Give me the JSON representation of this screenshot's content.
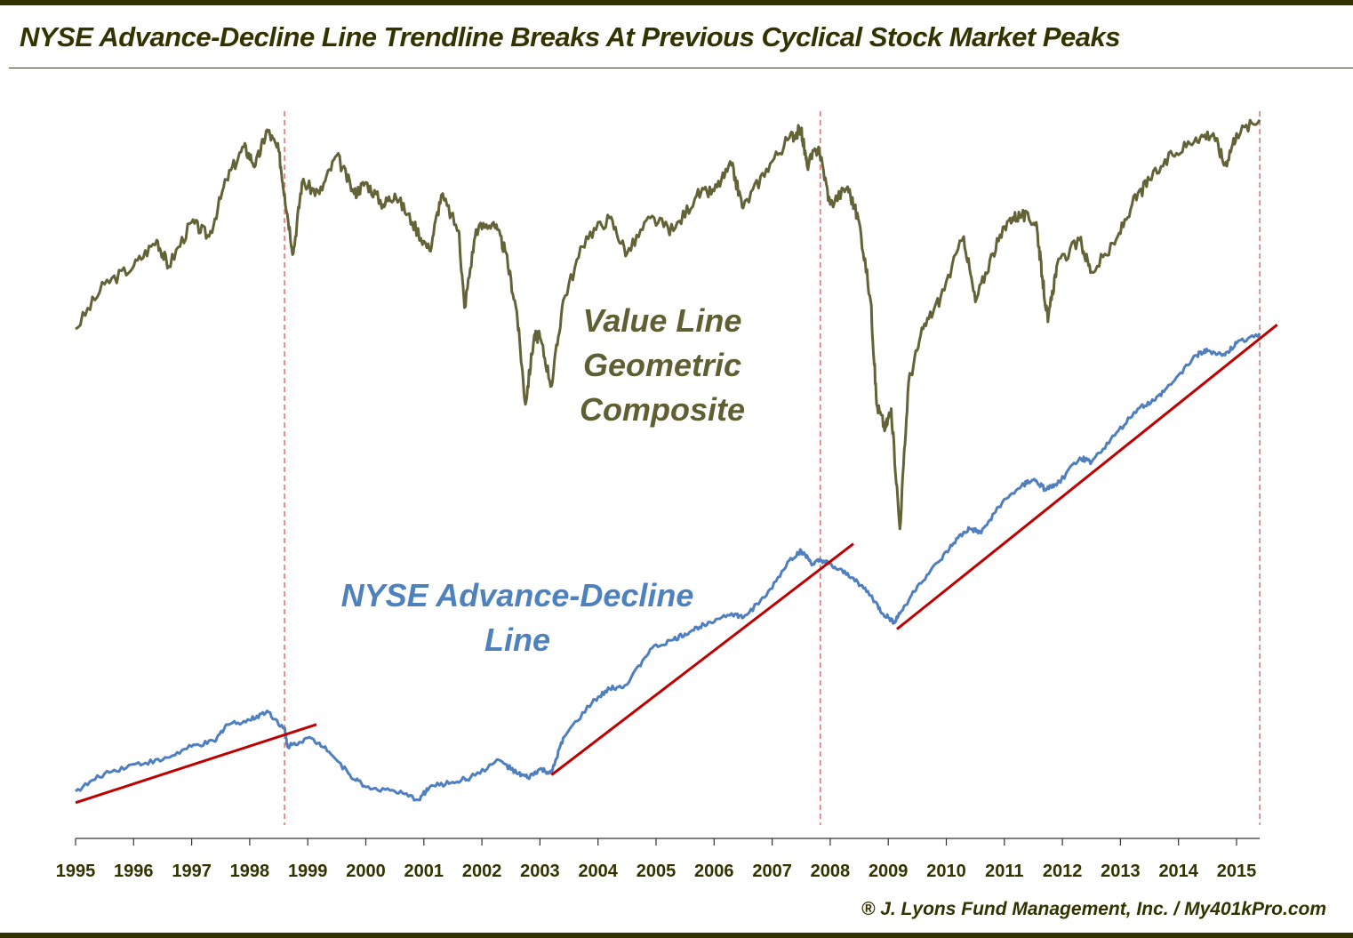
{
  "title": "NYSE Advance-Decline Line Trendline Breaks At Previous Cyclical Stock Market Peaks",
  "credit": "® J. Lyons Fund Management, Inc. / My401kPro.com",
  "chart_data": {
    "type": "line",
    "title": "NYSE Advance-Decline Line Trendline Breaks At Previous Cyclical Stock Market Peaks",
    "xlabel": "",
    "ylabel": "",
    "x_tick_labels": [
      "1995",
      "1996",
      "1997",
      "1998",
      "1999",
      "2000",
      "2001",
      "2002",
      "2003",
      "2004",
      "2005",
      "2006",
      "2007",
      "2008",
      "2009",
      "2010",
      "2011",
      "2012",
      "2013",
      "2014",
      "2015"
    ],
    "xlim": [
      1995,
      2015.4
    ],
    "ylim": [
      0,
      100
    ],
    "y_axis_shown": false,
    "grid": false,
    "legend": "none",
    "series": [
      {
        "name": "Value Line Geometric Composite",
        "color": "#636337",
        "label_lines": [
          "Value Line",
          "Geometric",
          "Composite"
        ],
        "x": [
          1995.0,
          1995.5,
          1996.0,
          1996.4,
          1996.6,
          1997.0,
          1997.3,
          1997.6,
          1997.9,
          1998.1,
          1998.3,
          1998.5,
          1998.6,
          1998.75,
          1998.9,
          1999.2,
          1999.5,
          1999.8,
          2000.0,
          2000.3,
          2000.5,
          2000.8,
          2001.1,
          2001.3,
          2001.6,
          2001.7,
          2001.9,
          2002.2,
          2002.4,
          2002.6,
          2002.75,
          2002.9,
          2003.0,
          2003.2,
          2003.4,
          2003.8,
          2004.2,
          2004.5,
          2004.9,
          2005.3,
          2005.7,
          2006.0,
          2006.3,
          2006.5,
          2006.9,
          2007.3,
          2007.5,
          2007.6,
          2007.8,
          2008.0,
          2008.3,
          2008.5,
          2008.7,
          2008.8,
          2008.95,
          2009.05,
          2009.2,
          2009.35,
          2009.6,
          2009.9,
          2010.3,
          2010.5,
          2010.8,
          2011.1,
          2011.3,
          2011.55,
          2011.65,
          2011.75,
          2011.9,
          2012.3,
          2012.5,
          2012.9,
          2013.2,
          2013.5,
          2013.9,
          2014.3,
          2014.6,
          2014.8,
          2015.0,
          2015.4
        ],
        "y": [
          70,
          76.3,
          78.8,
          82.5,
          78.8,
          85,
          83,
          91,
          95.6,
          93,
          98,
          95,
          89,
          80.6,
          90.6,
          89,
          94.4,
          89,
          90.6,
          87.5,
          89,
          85,
          81,
          88.8,
          83.8,
          73,
          84,
          85,
          81,
          72.5,
          59.4,
          69,
          68.8,
          62,
          74,
          83,
          85.6,
          80.6,
          85.6,
          83.8,
          88.8,
          89.4,
          93,
          87,
          92.5,
          96.9,
          98,
          93,
          95.6,
          87.5,
          90,
          85,
          73.8,
          59.4,
          56,
          58.8,
          41.9,
          62.5,
          70,
          74.4,
          83,
          73.8,
          80.6,
          85.6,
          86,
          85,
          77.5,
          71,
          78.8,
          82.5,
          78,
          81.9,
          87.5,
          91,
          94.4,
          96.9,
          97.5,
          93,
          97.5,
          99.4
        ]
      },
      {
        "name": "NYSE Advance-Decline Line",
        "color": "#4f7fbf",
        "label_lines": [
          "NYSE Advance-Decline",
          "Line"
        ],
        "x": [
          1995.0,
          1995.5,
          1996.0,
          1996.5,
          1997.0,
          1997.4,
          1997.6,
          1998.0,
          1998.3,
          1998.6,
          1998.65,
          1999.0,
          1999.3,
          1999.7,
          2000.0,
          2000.5,
          2000.9,
          2001.1,
          2001.5,
          2001.8,
          2002.3,
          2002.6,
          2002.8,
          2003.0,
          2003.2,
          2003.4,
          2003.9,
          2004.2,
          2004.5,
          2004.9,
          2005.3,
          2005.6,
          2005.9,
          2006.3,
          2006.5,
          2006.9,
          2007.3,
          2007.5,
          2007.7,
          2007.85,
          2008.1,
          2008.4,
          2008.7,
          2008.9,
          2009.1,
          2009.2,
          2009.5,
          2009.9,
          2010.2,
          2010.4,
          2010.6,
          2010.9,
          2011.3,
          2011.5,
          2011.7,
          2011.9,
          2012.3,
          2012.5,
          2012.9,
          2013.3,
          2013.6,
          2013.9,
          2014.3,
          2014.5,
          2014.8,
          2015.0,
          2015.4
        ],
        "y": [
          5,
          7.5,
          8.8,
          9.4,
          11.3,
          12,
          14.4,
          15,
          16.3,
          13.8,
          11.3,
          12.5,
          11.3,
          7.5,
          5.6,
          5,
          3.8,
          5.6,
          6.3,
          6.9,
          9.4,
          7.5,
          6.9,
          8.1,
          7.5,
          12.5,
          17.5,
          19.4,
          20,
          25,
          26.3,
          27.5,
          28.8,
          30,
          29.4,
          32.5,
          37.5,
          38.8,
          36.9,
          37.5,
          36.3,
          35,
          32.5,
          30,
          28.8,
          30,
          33.8,
          37.5,
          40.6,
          41.9,
          41.3,
          45,
          48,
          48.8,
          47.5,
          48,
          51.9,
          51.3,
          55,
          58.8,
          60,
          62.5,
          66.3,
          66.9,
          66.3,
          68,
          69.4
        ]
      }
    ],
    "trendlines": {
      "color": "#c00000",
      "lines": [
        {
          "x": [
            1995.0,
            1999.15
          ],
          "y": [
            3.4,
            14.4
          ]
        },
        {
          "x": [
            2003.2,
            2008.4
          ],
          "y": [
            7.3,
            39.8
          ]
        },
        {
          "x": [
            2009.15,
            2015.7
          ],
          "y": [
            27.8,
            70.6
          ]
        }
      ]
    },
    "peak_markers": {
      "color": "#e07070",
      "style": "dashed",
      "x": [
        1998.6,
        2007.83,
        2015.4
      ]
    }
  }
}
